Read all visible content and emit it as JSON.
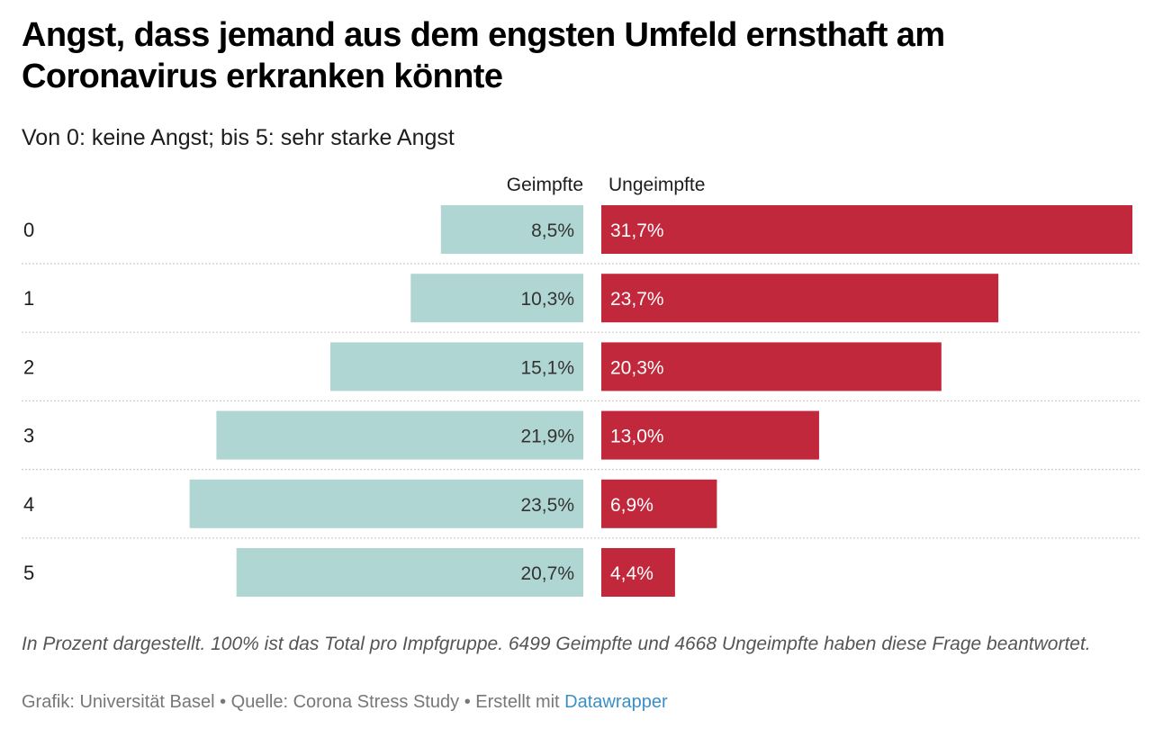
{
  "title": "Angst, dass jemand aus dem engsten Umfeld ernsthaft am Coronavirus erkranken könnte",
  "subtitle": "Von 0: keine Angst; bis 5: sehr starke Angst",
  "footnote": "In Prozent dargestellt. 100% ist das Total pro Impfgruppe. 6499 Geimpfte und 4668 Ungeimpfte haben diese Frage beantwortet.",
  "credits": {
    "graphic_label": "Grafik: Universität Basel",
    "separator": "•",
    "source_label": "Quelle: Corona Stress Study",
    "created_label": "Erstellt mit",
    "tool_link": "Datawrapper"
  },
  "colors": {
    "vaccinated": "#b0d6d3",
    "unvaccinated": "#c1283c",
    "gridline": "#cccccc"
  },
  "chart_data": {
    "type": "bar",
    "orientation": "horizontal-diverging",
    "categories": [
      "0",
      "1",
      "2",
      "3",
      "4",
      "5"
    ],
    "series": [
      {
        "name": "Geimpfte",
        "values": [
          8.5,
          10.3,
          15.1,
          21.9,
          23.5,
          20.7
        ],
        "labels": [
          "8,5%",
          "10,3%",
          "15,1%",
          "21,9%",
          "23,5%",
          "20,7%"
        ],
        "color": "#b0d6d3"
      },
      {
        "name": "Ungeimpfte",
        "values": [
          31.7,
          23.7,
          20.3,
          13.0,
          6.9,
          4.4
        ],
        "labels": [
          "31,7%",
          "23,7%",
          "20,3%",
          "13,0%",
          "6,9%",
          "4,4%"
        ],
        "color": "#c1283c"
      }
    ],
    "xlim": [
      0,
      31.7
    ],
    "grid": true
  }
}
